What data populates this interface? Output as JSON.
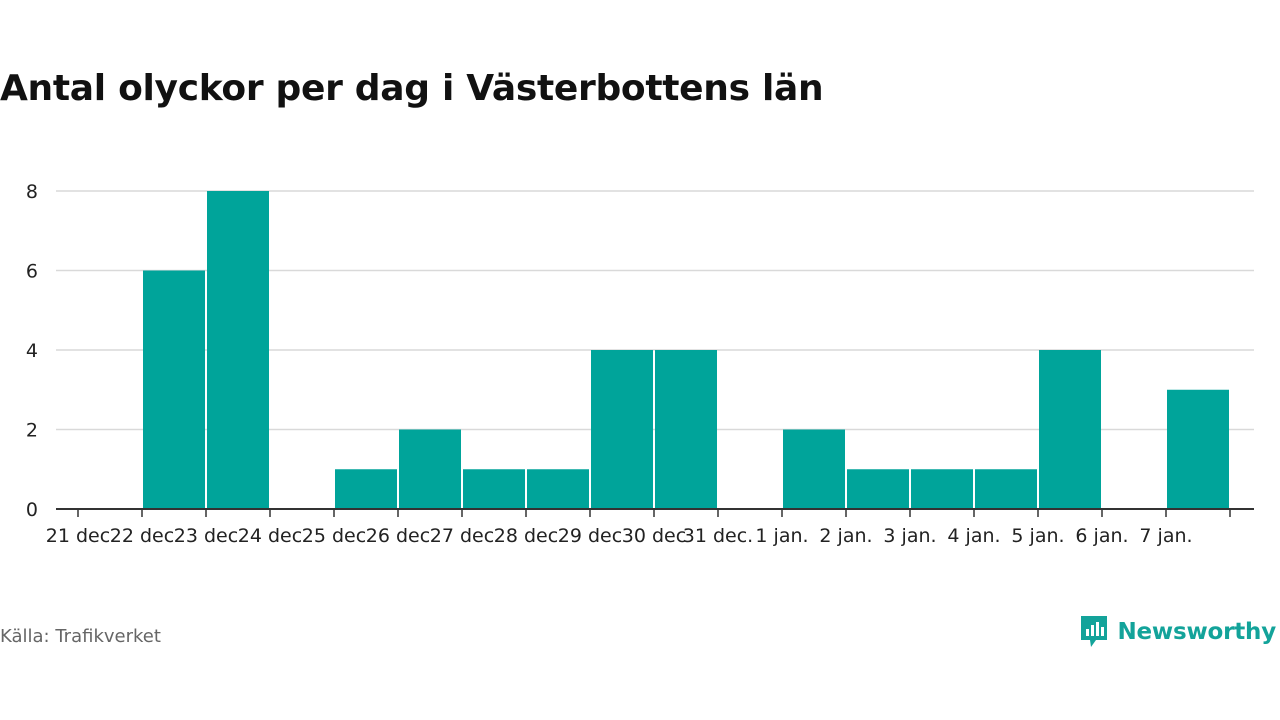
{
  "title": "Antal olyckor per dag i Västerbottens län",
  "source": "Källa: Trafikverket",
  "brand": {
    "name": "Newsworthy",
    "icon": "newsworthy-logo-icon"
  },
  "colors": {
    "bar": "#00a49a",
    "grid": "#d9d9d9",
    "axis": "#333333",
    "brand": "#13a39a"
  },
  "chart_data": {
    "type": "bar",
    "categories": [
      "21 dec",
      "22 dec",
      "23 dec",
      "24 dec",
      "25 dec",
      "26 dec",
      "27 dec",
      "28 dec",
      "29 dec",
      "30 dec",
      "31 dec.",
      "1 jan.",
      "2 jan.",
      "3 jan.",
      "4 jan.",
      "5 jan.",
      "6 jan.",
      "7 jan."
    ],
    "values": [
      0,
      6,
      8,
      0,
      1,
      2,
      1,
      1,
      4,
      4,
      0,
      2,
      1,
      1,
      1,
      4,
      0,
      3
    ],
    "ylim": [
      0,
      8
    ],
    "yticks": [
      0,
      2,
      4,
      6,
      8
    ],
    "grid": true,
    "title": "Antal olyckor per dag i Västerbottens län"
  }
}
